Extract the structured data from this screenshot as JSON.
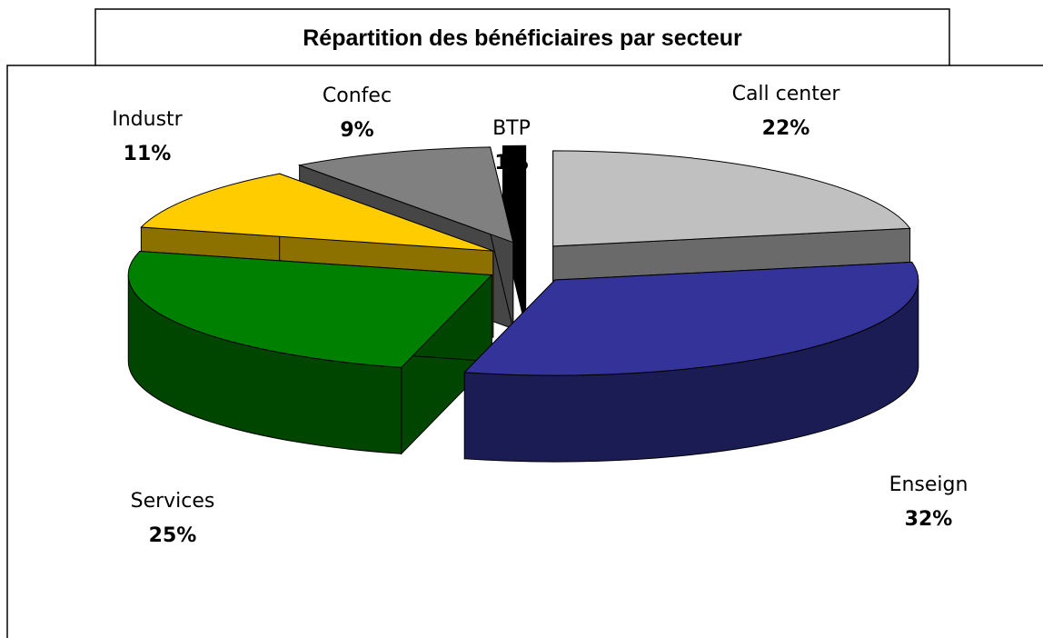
{
  "chart_data": {
    "type": "pie",
    "title": "Répartition des bénéficiaires par secteur",
    "categories": [
      "Call center",
      "Enseign",
      "Services",
      "Industr",
      "Confec",
      "BTP"
    ],
    "values": [
      22,
      32,
      25,
      11,
      9,
      1
    ],
    "value_labels": [
      "22%",
      "32%",
      "25%",
      "11%",
      "9%",
      "1%"
    ],
    "colors": [
      "#c0c0c0",
      "#333399",
      "#008000",
      "#ffcc00",
      "#808080",
      "#000000"
    ]
  }
}
